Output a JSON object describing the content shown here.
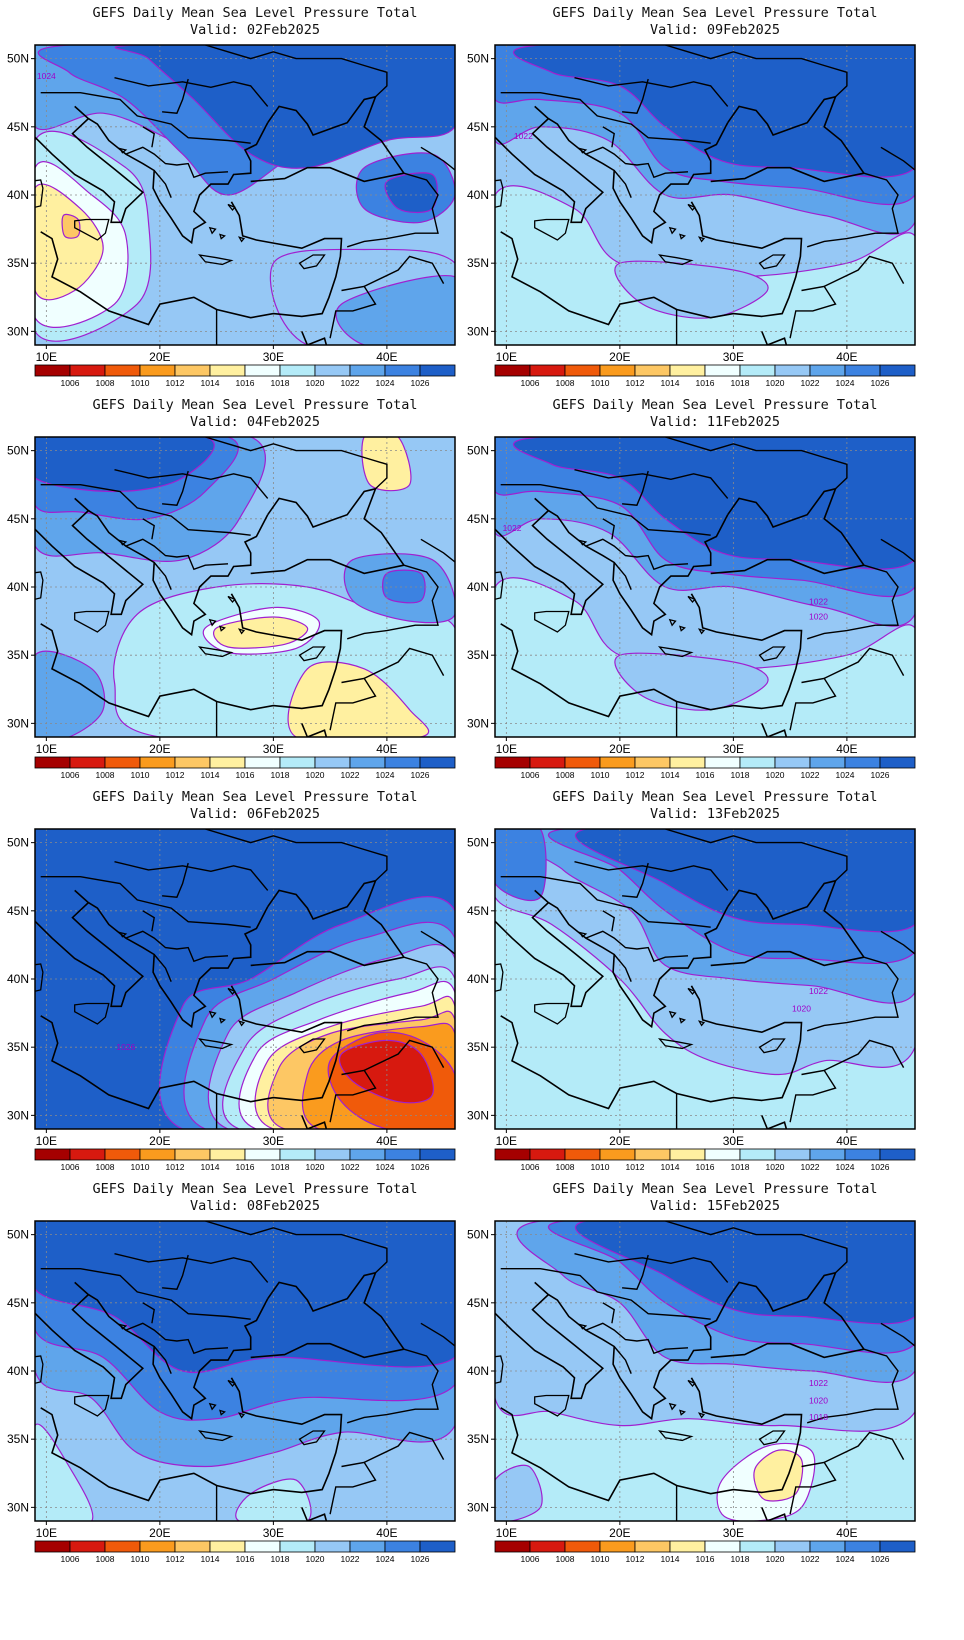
{
  "colorbar": {
    "levels": [
      "1006",
      "1008",
      "1010",
      "1012",
      "1014",
      "1016",
      "1018",
      "1020",
      "1022",
      "1024",
      "1026"
    ],
    "colors": [
      "#a50000",
      "#d7190f",
      "#f05a0a",
      "#fa9b1e",
      "#fdc764",
      "#fff0a0",
      "#f0ffff",
      "#b4ebf8",
      "#96c8f5",
      "#5fa5eb",
      "#3c82e1",
      "#1e5fc8"
    ]
  },
  "axes": {
    "lat_labels": [
      "50N",
      "45N",
      "40N",
      "35N",
      "30N"
    ],
    "lon_labels": [
      "10E",
      "20E",
      "30E",
      "40E"
    ]
  },
  "panels": [
    {
      "title": "GEFS Daily Mean Sea Level Pressure Total",
      "valid": "Valid: 02Feb2025",
      "contour_labels": [
        "1024"
      ],
      "regime": "low-west"
    },
    {
      "title": "GEFS Daily Mean Sea Level Pressure Total",
      "valid": "Valid: 09Feb2025",
      "contour_labels": [
        "1022"
      ],
      "regime": "high-north"
    },
    {
      "title": "GEFS Daily Mean Sea Level Pressure Total",
      "valid": "Valid: 04Feb2025",
      "contour_labels": [],
      "regime": "mixed"
    },
    {
      "title": "GEFS Daily Mean Sea Level Pressure Total",
      "valid": "Valid: 11Feb2025",
      "contour_labels": [
        "1022",
        "1022",
        "1020"
      ],
      "regime": "high-north"
    },
    {
      "title": "GEFS Daily Mean Sea Level Pressure Total",
      "valid": "Valid: 06Feb2025",
      "contour_labels": [
        "1026"
      ],
      "regime": "low-east"
    },
    {
      "title": "GEFS Daily Mean Sea Level Pressure Total",
      "valid": "Valid: 13Feb2025",
      "contour_labels": [
        "1022",
        "1020"
      ],
      "regime": "high-north-weak"
    },
    {
      "title": "GEFS Daily Mean Sea Level Pressure Total",
      "valid": "Valid: 08Feb2025",
      "contour_labels": [],
      "regime": "high-strong"
    },
    {
      "title": "GEFS Daily Mean Sea Level Pressure Total",
      "valid": "Valid: 15Feb2025",
      "contour_labels": [
        "1022",
        "1020",
        "1018"
      ],
      "regime": "high-north-low-south"
    }
  ]
}
